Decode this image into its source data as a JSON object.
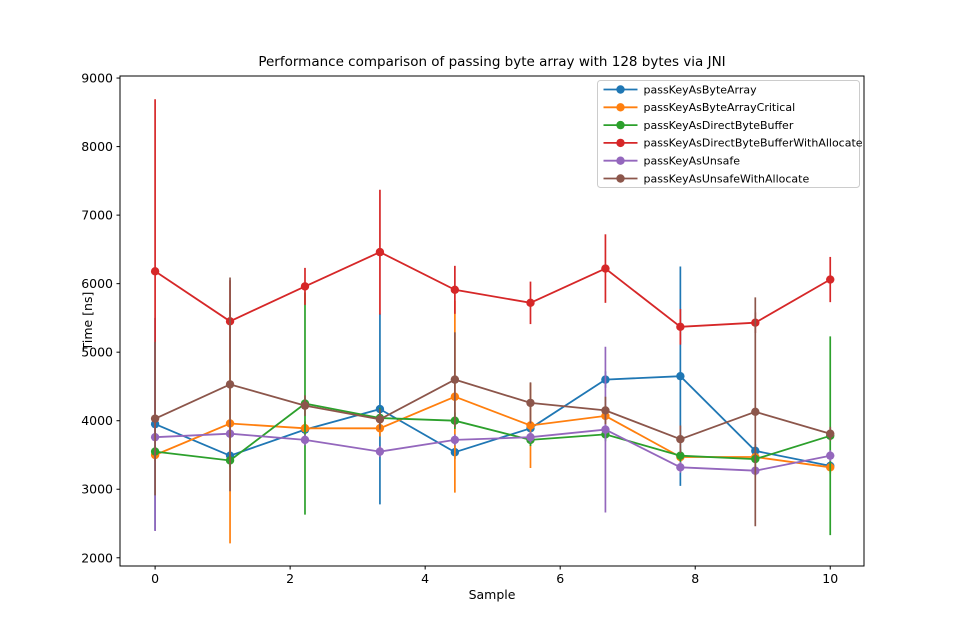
{
  "chart_data": {
    "type": "line",
    "title": "Performance comparison of passing byte array with 128 bytes via JNI",
    "xlabel": "Sample",
    "ylabel": "Time [ns]",
    "grid": false,
    "error_bars": true,
    "marker": "circle",
    "legend_position": "upper right",
    "xlim": [
      -0.52,
      10.5
    ],
    "ylim": [
      1880,
      9030
    ],
    "xticks": [
      0,
      2,
      4,
      6,
      8,
      10
    ],
    "yticks": [
      2000,
      3000,
      4000,
      5000,
      6000,
      7000,
      8000,
      9000
    ],
    "x": [
      0,
      1.11,
      2.22,
      3.33,
      4.44,
      5.56,
      6.67,
      7.78,
      8.89,
      10
    ],
    "series": [
      {
        "name": "passKeyAsByteArray",
        "color": "#1f77b4",
        "values": [
          3950,
          3490,
          3870,
          4170,
          3540,
          3890,
          4600,
          4650,
          3560,
          3340
        ],
        "errors": [
          1550,
          80,
          100,
          1390,
          100,
          100,
          120,
          1600,
          100,
          80
        ]
      },
      {
        "name": "passKeyAsByteArrayCritical",
        "color": "#ff7f0e",
        "values": [
          3500,
          3960,
          3890,
          3890,
          4350,
          3930,
          4070,
          3470,
          3470,
          3320
        ],
        "errors": [
          90,
          1750,
          100,
          120,
          1400,
          620,
          150,
          100,
          100,
          90
        ]
      },
      {
        "name": "passKeyAsDirectByteBuffer",
        "color": "#2ca02c",
        "values": [
          3550,
          3420,
          4250,
          4040,
          4000,
          3720,
          3800,
          3490,
          3440,
          3780
        ],
        "errors": [
          90,
          100,
          1620,
          150,
          120,
          90,
          100,
          100,
          100,
          1450
        ]
      },
      {
        "name": "passKeyAsDirectByteBufferWithAllocate",
        "color": "#d62728",
        "values": [
          6180,
          5450,
          5960,
          6460,
          5910,
          5720,
          6220,
          5370,
          5430,
          6060
        ],
        "errors": [
          2510,
          600,
          270,
          910,
          350,
          310,
          500,
          260,
          150,
          330
        ]
      },
      {
        "name": "passKeyAsUnsafe",
        "color": "#9467bd",
        "values": [
          3760,
          3810,
          3720,
          3550,
          3720,
          3760,
          3870,
          3320,
          3270,
          3490
        ],
        "errors": [
          1370,
          80,
          80,
          80,
          80,
          80,
          1210,
          80,
          80,
          80
        ]
      },
      {
        "name": "passKeyAsUnsafeWithAllocate",
        "color": "#8c564b",
        "values": [
          4030,
          4530,
          4220,
          4020,
          4600,
          4260,
          4150,
          3730,
          4130,
          3810
        ],
        "errors": [
          1120,
          1560,
          150,
          150,
          690,
          300,
          200,
          200,
          1670,
          100
        ]
      }
    ],
    "style": {
      "spine_color": "#000000",
      "legend_border_color": "#cccccc",
      "background": "#ffffff"
    }
  }
}
